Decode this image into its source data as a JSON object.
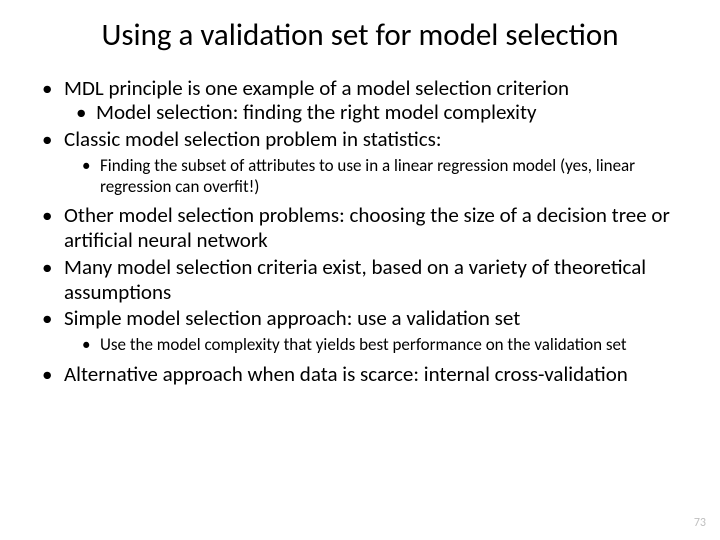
{
  "title": "Using a validation set for model selection",
  "bullets": {
    "b1": "MDL principle is one example of a model selection criterion",
    "b1a": "Model selection: finding the right model complexity",
    "b2": "Classic model selection problem in statistics:",
    "b2a": "Finding the subset of attributes to use in a linear regression model (yes, linear regression can overfit!)",
    "b3": "Other model selection problems: choosing the size of a decision tree or artificial neural network",
    "b4": "Many model selection criteria exist, based on a variety of theoretical assumptions",
    "b5": "Simple model selection approach: use a validation set",
    "b5a": "Use the model complexity that yields best performance on the validation set",
    "b6": "Alternative approach when data is scarce: internal cross-validation"
  },
  "page_number": "73",
  "colors": {
    "background": "#ffffff",
    "text": "#000000",
    "page_num": "#bfbfbf"
  },
  "fonts": {
    "title_size_pt": 31,
    "body_size_pt": 21,
    "sub_size_pt": 17
  }
}
